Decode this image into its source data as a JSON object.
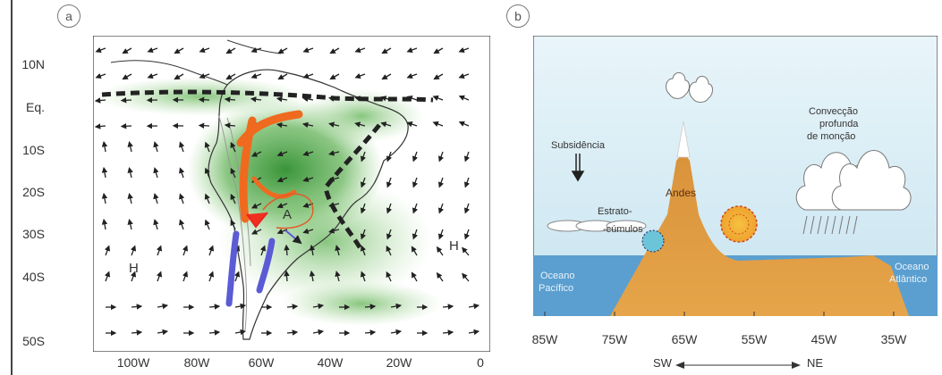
{
  "panel_a": {
    "badge": "a",
    "lat_labels": [
      "10N",
      "Eq.",
      "10S",
      "20S",
      "30S",
      "40S",
      "50S"
    ],
    "lon_labels": [
      "100W",
      "80W",
      "60W",
      "40W",
      "20W",
      "0"
    ],
    "map_labels": {
      "high_west": "H",
      "high_east": "H",
      "anticyclone": "A"
    }
  },
  "panel_b": {
    "badge": "b",
    "labels": {
      "convection_1": "Convecção",
      "convection_2": "profunda",
      "convection_3": "de monção",
      "subsidence": "Subsidência",
      "andes": "Andes",
      "stratocumulus_1": "Estrato-",
      "stratocumulus_2": "-cúmulos",
      "pacific_1": "Oceano",
      "pacific_2": "Pacífico",
      "atlantic_1": "Oceano",
      "atlantic_2": "Atlântico"
    },
    "lon_labels": [
      "85W",
      "75W",
      "65W",
      "55W",
      "45W",
      "35W"
    ],
    "direction": {
      "left": "SW",
      "right": "NE"
    }
  },
  "colors": {
    "sky": "#cfe8f2",
    "ocean": "#5b9fd0",
    "land": "#e0a040",
    "green": "#3a9a3a",
    "jet_orange": "#ef6a1f",
    "jet_blue": "#5b5bd6"
  }
}
